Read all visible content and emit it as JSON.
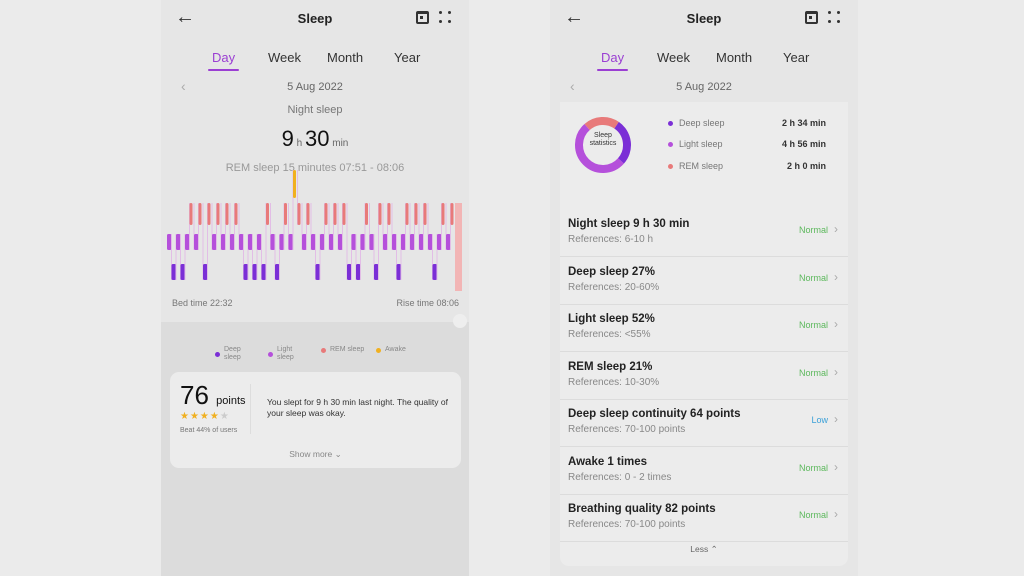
{
  "header": {
    "title": "Sleep",
    "back_icon": "arrow-left-icon",
    "calendar_icon": "calendar-icon",
    "more_icon": "grid-dots-icon"
  },
  "tabs": [
    {
      "label": "Day",
      "active": true
    },
    {
      "label": "Week"
    },
    {
      "label": "Month"
    },
    {
      "label": "Year"
    }
  ],
  "date": "5 Aug 2022",
  "left": {
    "night_label": "Night sleep",
    "hours": "9",
    "h_unit": "h",
    "minutes": "30",
    "m_unit": "min",
    "rem_note": "REM sleep 15 minutes 07:51 - 08:06",
    "bed_time": "Bed time 22:32",
    "rise_time": "Rise time 08:06",
    "legend": [
      {
        "label": "Deep sleep",
        "color": "#7b2fd6"
      },
      {
        "label": "Light sleep",
        "color": "#b550db"
      },
      {
        "label": "REM sleep",
        "color": "#e87a7a"
      },
      {
        "label": "Awake",
        "color": "#f0b020"
      }
    ],
    "hypnogram": [
      "L",
      "D",
      "L",
      "D",
      "L",
      "R",
      "L",
      "R",
      "D",
      "R",
      "L",
      "R",
      "L",
      "R",
      "L",
      "R",
      "L",
      "D",
      "L",
      "D",
      "L",
      "D",
      "R",
      "L",
      "D",
      "L",
      "R",
      "L",
      "A",
      "R",
      "L",
      "R",
      "L",
      "D",
      "L",
      "R",
      "L",
      "R",
      "L",
      "R",
      "D",
      "L",
      "D",
      "L",
      "R",
      "L",
      "D",
      "R",
      "L",
      "R",
      "L",
      "D",
      "L",
      "R",
      "L",
      "R",
      "L",
      "R",
      "L",
      "D",
      "L",
      "R",
      "L",
      "R"
    ],
    "score": "76",
    "score_unit": "points",
    "stars": 4,
    "stars_max": 5,
    "beat": "Beat 44% of users",
    "summary": "You slept for 9 h 30 min last night. The quality of your sleep was okay.",
    "show_more": "Show more"
  },
  "right": {
    "donut_label": "Sleep statistics",
    "stats": [
      {
        "label": "Deep sleep",
        "value": "2 h 34 min",
        "minutes": 154,
        "color": "#7b2fd6"
      },
      {
        "label": "Light sleep",
        "value": "4 h 56 min",
        "minutes": 296,
        "color": "#b550db"
      },
      {
        "label": "REM sleep",
        "value": "2 h 0 min",
        "minutes": 120,
        "color": "#e87a7a"
      }
    ],
    "rows": [
      {
        "title": "Night sleep 9 h 30 min",
        "ref": "References: 6-10 h",
        "status": "Normal"
      },
      {
        "title": "Deep sleep 27%",
        "ref": "References: 20-60%",
        "status": "Normal"
      },
      {
        "title": "Light sleep 52%",
        "ref": "References: <55%",
        "status": "Normal"
      },
      {
        "title": "REM sleep 21%",
        "ref": "References: 10-30%",
        "status": "Normal"
      },
      {
        "title": "Deep sleep continuity 64 points",
        "ref": "References: 70-100 points",
        "status": "Low"
      },
      {
        "title": "Awake 1 times",
        "ref": "References: 0 - 2 times",
        "status": "Normal"
      },
      {
        "title": "Breathing quality 82 points",
        "ref": "References: 70-100 points",
        "status": "Normal"
      }
    ],
    "less": "Less"
  },
  "colors": {
    "accent": "#9b3fd3",
    "normal": "#5cb85c",
    "low": "#3aa0d8"
  }
}
